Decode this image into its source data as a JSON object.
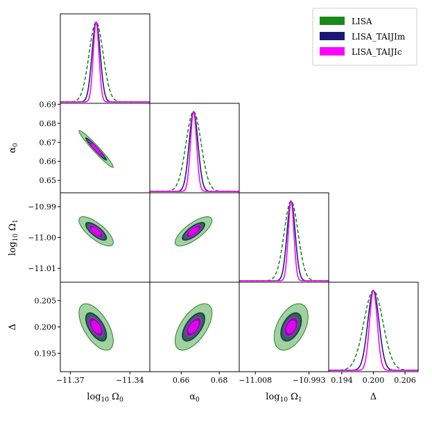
{
  "chart_data": {
    "type": "corner",
    "parameters": [
      {
        "name": "log10_Omega0",
        "label_base": "log",
        "label_sub": "10",
        "label_sym": "Ω",
        "label_symsub": "0",
        "true_value": -11.357,
        "ticks": [
          -11.37,
          -11.34
        ],
        "tick_labels": [
          "−11.37",
          "−11.34"
        ],
        "range": [
          -11.375,
          -11.33
        ]
      },
      {
        "name": "alpha0",
        "label_base": "",
        "label_sub": "",
        "label_sym": "α",
        "label_symsub": "0",
        "true_value": 0.6665,
        "ticks": [
          0.66,
          0.68
        ],
        "tick_labels": [
          "0.66",
          "0.68"
        ],
        "range": [
          0.6435,
          0.6905
        ]
      },
      {
        "name": "log10_Omega1",
        "label_base": "log",
        "label_sub": "10",
        "label_sym": "Ω",
        "label_symsub": "1",
        "true_value": -10.998,
        "ticks": [
          -11.008,
          -10.993
        ],
        "tick_labels": [
          "−11.008",
          "−10.993"
        ],
        "range": [
          -11.0125,
          -10.9875
        ]
      },
      {
        "name": "Delta",
        "label_base": "",
        "label_sub": "",
        "label_sym": "Δ",
        "label_symsub": "",
        "true_value": 0.2,
        "ticks": [
          0.194,
          0.2,
          0.206
        ],
        "tick_labels": [
          "0.194",
          "0.200",
          "0.206"
        ],
        "range": [
          0.1915,
          0.2085
        ]
      }
    ],
    "y_tick_labels": {
      "alpha0": {
        "ticks": [
          0.65,
          0.66,
          0.67,
          0.68,
          0.69
        ],
        "labels": [
          "0.65",
          "0.66",
          "0.67",
          "0.68",
          "0.69"
        ],
        "range": [
          0.6435,
          0.6905
        ]
      },
      "log10_Omega1": {
        "ticks": [
          -11.01,
          -11.0,
          -10.99
        ],
        "labels": [
          "−11.01",
          "−11.00",
          "−10.99"
        ],
        "range": [
          -11.0145,
          -10.9855
        ]
      },
      "Delta": {
        "ticks": [
          0.195,
          0.2,
          0.205
        ],
        "labels": [
          "0.195",
          "0.200",
          "0.205"
        ],
        "range": [
          0.1915,
          0.2085
        ]
      }
    },
    "series": [
      {
        "name": "LISA",
        "color": "#1a8a1a",
        "line_style": "dashed",
        "sigma_scale": 2.2
      },
      {
        "name": "LISA_TAIJIm",
        "color": "#191975",
        "line_style": "solid",
        "sigma_scale": 1.3
      },
      {
        "name": "LISA_TAIJIc",
        "color": "#ff00ff",
        "line_style": "solid",
        "sigma_scale": 0.9
      }
    ],
    "marginal_sigmas": {
      "log10_Omega0": 0.0016,
      "alpha0": 0.0018,
      "log10_Omega1": 0.00088,
      "Delta": 0.00082
    },
    "correlations": {
      "alpha0|log10_Omega0": -0.97,
      "log10_Omega1|log10_Omega0": -0.75,
      "log10_Omega1|alpha0": 0.75,
      "Delta|log10_Omega0": -0.6,
      "Delta|alpha0": 0.6,
      "Delta|log10_Omega1": 0.45
    },
    "legend": {
      "position": "top-right",
      "entries": [
        "LISA",
        "LISA_TAIJIm",
        "LISA_TAIJIc"
      ]
    }
  }
}
